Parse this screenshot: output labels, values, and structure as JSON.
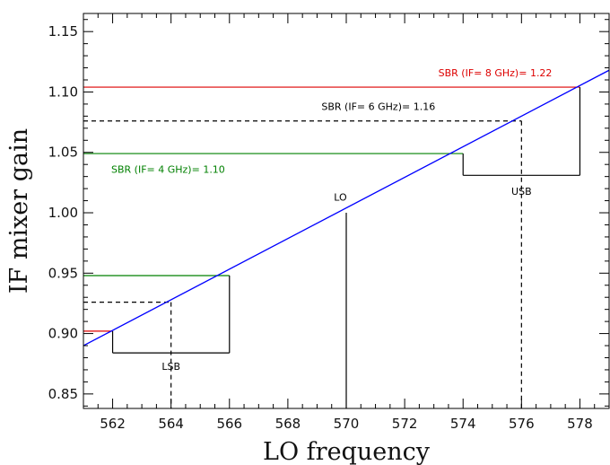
{
  "chart_data": {
    "type": "line",
    "xlabel": "LO frequency",
    "ylabel": "IF mixer gain",
    "xlim": [
      561,
      579
    ],
    "ylim": [
      0.838,
      1.165
    ],
    "x_ticks": [
      562,
      564,
      566,
      568,
      570,
      572,
      574,
      576,
      578
    ],
    "y_ticks": [
      0.85,
      0.9,
      0.95,
      1.0,
      1.05,
      1.1,
      1.15
    ],
    "x_tick_labels": [
      "562",
      "564",
      "566",
      "568",
      "570",
      "572",
      "574",
      "576",
      "578"
    ],
    "y_tick_labels": [
      "0.85",
      "0.90",
      "0.95",
      "1.00",
      "1.05",
      "1.10",
      "1.15"
    ],
    "grid": false,
    "series": [
      {
        "color": "#0000ff",
        "x": [
          561,
          579
        ],
        "y": [
          0.89,
          1.118
        ]
      }
    ],
    "annotations": [
      {
        "text": "SBR (IF= 8 GHz)= 1.22",
        "color": "#dd0000",
        "x": 575.1,
        "y": 1.113
      },
      {
        "text": "SBR (IF= 6 GHz)= 1.16",
        "color": "#000000",
        "x": 571.1,
        "y": 1.085
      },
      {
        "text": "SBR (IF= 4 GHz)= 1.10",
        "color": "#008000",
        "x": 563.9,
        "y": 1.033
      },
      {
        "text": "LO",
        "color": "#000000",
        "x": 569.8,
        "y": 1.01
      },
      {
        "text": "USB",
        "color": "#000000",
        "x": 576.0,
        "y": 1.015
      },
      {
        "text": "LSB",
        "color": "#000000",
        "x": 564.0,
        "y": 0.87
      }
    ],
    "gain_levels": [
      {
        "label": "IF= 8 GHz",
        "color": "#dd0000",
        "dash": false,
        "lsb_freq": 562,
        "lsb_gain": 0.902,
        "usb_freq": 578,
        "usb_gain": 1.104
      },
      {
        "label": "IF= 6 GHz",
        "color": "#000000",
        "dash": true,
        "lsb_freq": 564,
        "lsb_gain": 0.926,
        "usb_freq": 576,
        "usb_gain": 1.076
      },
      {
        "label": "IF= 4 GHz",
        "color": "#008000",
        "dash": false,
        "lsb_freq": 566,
        "lsb_gain": 0.948,
        "usb_freq": 574,
        "usb_gain": 1.049
      }
    ],
    "lo": {
      "freq": 570,
      "gain": 1.0
    },
    "usb_box": {
      "x": [
        574,
        578
      ],
      "y_bottom": 1.031
    },
    "lsb_box": {
      "x": [
        562,
        566
      ],
      "y_bottom": 0.884
    },
    "dashed_markers": [
      {
        "freq": 576,
        "gain": 1.076
      },
      {
        "freq": 564,
        "gain": 0.926
      }
    ]
  }
}
